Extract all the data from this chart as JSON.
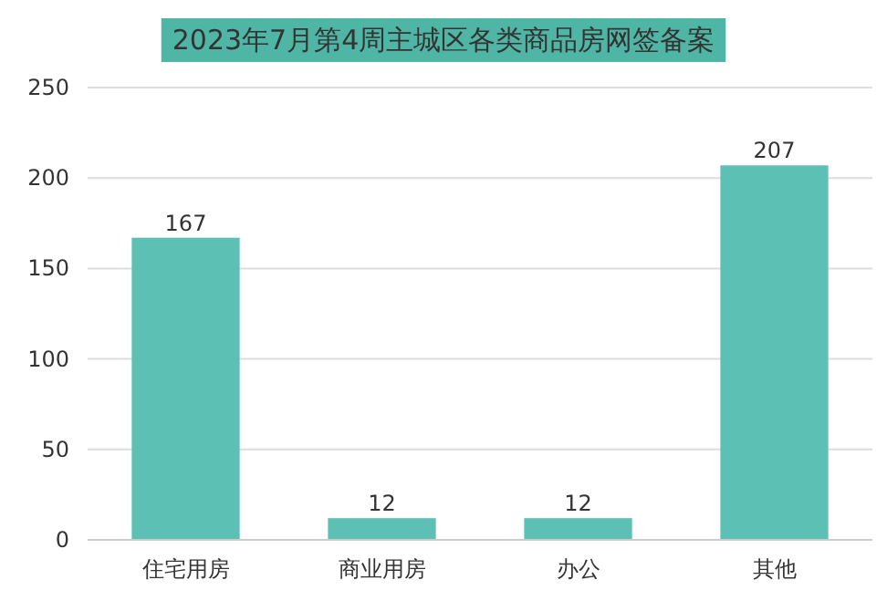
{
  "chart_data": {
    "type": "bar",
    "title": "2023年7月第4周主城区各类商品房网签备案",
    "categories": [
      "住宅用房",
      "商业用房",
      "办公",
      "其他"
    ],
    "values": [
      167,
      12,
      12,
      207
    ],
    "color": "#5cc0b4",
    "ylim": [
      0,
      250
    ],
    "yticks": [
      0,
      50,
      100,
      150,
      200,
      250
    ],
    "grid": "y",
    "data_labels": true
  }
}
